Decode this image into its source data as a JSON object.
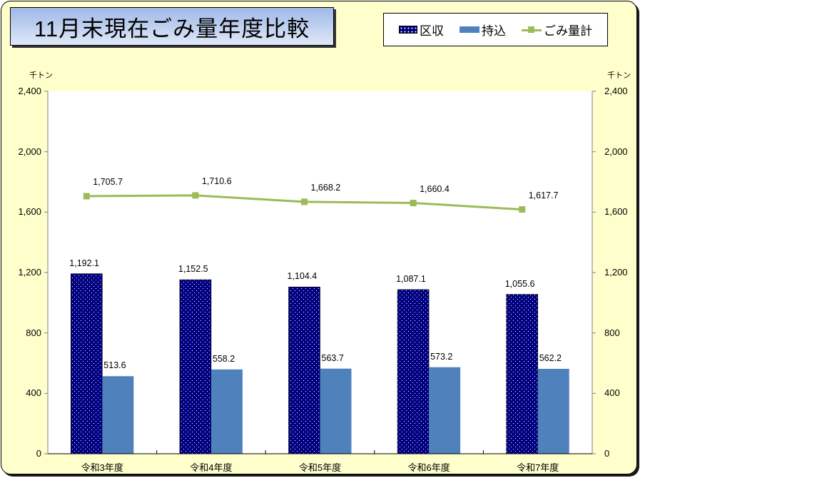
{
  "title": "11月末現在ごみ量年度比較",
  "legend": [
    {
      "label": "区収",
      "style": "dotted-bar",
      "color": "#000080"
    },
    {
      "label": "持込",
      "style": "bar",
      "color": "#4f81bd"
    },
    {
      "label": "ごみ量計",
      "style": "line-marker",
      "color": "#9bbb59"
    }
  ],
  "axes": {
    "left_unit": "千トン",
    "right_unit": "千トン",
    "ticks": [
      "2,400",
      "2,000",
      "1,600",
      "1,200",
      "800",
      "400",
      "0"
    ]
  },
  "categories": [
    "令和3年度",
    "令和4年度",
    "令和5年度",
    "令和6年度",
    "令和7年度"
  ],
  "labels": {
    "kushu": [
      "1,192.1",
      "1,152.5",
      "1,104.4",
      "1,087.1",
      "1,055.6"
    ],
    "mochikomi": [
      "513.6",
      "558.2",
      "563.7",
      "573.2",
      "562.2"
    ],
    "total": [
      "1,705.7",
      "1,710.6",
      "1,668.2",
      "1,660.4",
      "1,617.7"
    ]
  },
  "chart_data": {
    "type": "bar",
    "title": "11月末現在ごみ量年度比較",
    "categories": [
      "令和3年度",
      "令和4年度",
      "令和5年度",
      "令和6年度",
      "令和7年度"
    ],
    "series": [
      {
        "name": "区収",
        "type": "bar",
        "values": [
          1192.1,
          1152.5,
          1104.4,
          1087.1,
          1055.6
        ],
        "color": "#000080",
        "pattern": "dotted"
      },
      {
        "name": "持込",
        "type": "bar",
        "values": [
          513.6,
          558.2,
          563.7,
          573.2,
          562.2
        ],
        "color": "#4f81bd"
      },
      {
        "name": "ごみ量計",
        "type": "line",
        "values": [
          1705.7,
          1710.6,
          1668.2,
          1660.4,
          1617.7
        ],
        "color": "#9bbb59",
        "marker": "square"
      }
    ],
    "xlabel": "",
    "ylabel": "千トン",
    "y2label": "千トン",
    "ylim": [
      0,
      2400
    ],
    "y2lim": [
      0,
      2400
    ],
    "yticks": [
      0,
      400,
      800,
      1200,
      1600,
      2000,
      2400
    ],
    "grid": false,
    "legend_position": "top-right"
  }
}
